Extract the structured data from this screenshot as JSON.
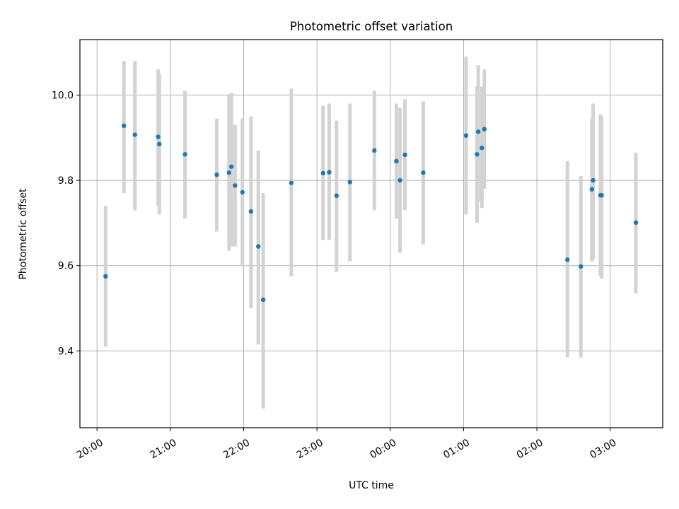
{
  "chart_data": {
    "type": "scatter",
    "title": "Photometric offset variation",
    "xlabel": "UTC time",
    "ylabel": "Photometric offset",
    "xlim": [
      "2000-01-01T19:46",
      "2000-01-02T03:43"
    ],
    "ylim": [
      9.22,
      10.13
    ],
    "xticks": [
      {
        "t": "2000-01-01T20:00",
        "label": "20:00"
      },
      {
        "t": "2000-01-01T21:00",
        "label": "21:00"
      },
      {
        "t": "2000-01-01T22:00",
        "label": "22:00"
      },
      {
        "t": "2000-01-01T23:00",
        "label": "23:00"
      },
      {
        "t": "2000-01-02T00:00",
        "label": "00:00"
      },
      {
        "t": "2000-01-02T01:00",
        "label": "01:00"
      },
      {
        "t": "2000-01-02T02:00",
        "label": "02:00"
      },
      {
        "t": "2000-01-02T03:00",
        "label": "03:00"
      }
    ],
    "yticks": [
      {
        "v": 9.4,
        "label": "9.4"
      },
      {
        "v": 9.6,
        "label": "9.6"
      },
      {
        "v": 9.8,
        "label": "9.8"
      },
      {
        "v": 10.0,
        "label": "10.0"
      }
    ],
    "grid": true,
    "point_color": "#1f77b4",
    "errorbar_color": "#d3d3d3",
    "points": [
      {
        "t": "2000-01-01T20:07",
        "y": 9.575,
        "lo": 9.41,
        "hi": 9.74
      },
      {
        "t": "2000-01-01T20:22",
        "y": 9.928,
        "lo": 9.77,
        "hi": 10.08
      },
      {
        "t": "2000-01-01T20:31",
        "y": 9.907,
        "lo": 9.73,
        "hi": 10.08
      },
      {
        "t": "2000-01-01T20:50",
        "y": 9.902,
        "lo": 9.74,
        "hi": 10.06
      },
      {
        "t": "2000-01-01T20:51",
        "y": 9.885,
        "lo": 9.72,
        "hi": 10.05
      },
      {
        "t": "2000-01-01T21:12",
        "y": 9.861,
        "lo": 9.71,
        "hi": 10.01
      },
      {
        "t": "2000-01-01T21:38",
        "y": 9.813,
        "lo": 9.68,
        "hi": 9.945
      },
      {
        "t": "2000-01-01T21:48",
        "y": 9.818,
        "lo": 9.635,
        "hi": 10.0
      },
      {
        "t": "2000-01-01T21:50",
        "y": 9.832,
        "lo": 9.645,
        "hi": 10.005
      },
      {
        "t": "2000-01-01T21:53",
        "y": 9.788,
        "lo": 9.645,
        "hi": 9.93
      },
      {
        "t": "2000-01-01T21:59",
        "y": 9.772,
        "lo": 9.6,
        "hi": 9.945
      },
      {
        "t": "2000-01-01T22:06",
        "y": 9.727,
        "lo": 9.5,
        "hi": 9.95
      },
      {
        "t": "2000-01-01T22:12",
        "y": 9.645,
        "lo": 9.415,
        "hi": 9.87
      },
      {
        "t": "2000-01-01T22:16",
        "y": 9.52,
        "lo": 9.265,
        "hi": 9.77
      },
      {
        "t": "2000-01-01T22:39",
        "y": 9.794,
        "lo": 9.575,
        "hi": 10.015
      },
      {
        "t": "2000-01-01T23:05",
        "y": 9.817,
        "lo": 9.66,
        "hi": 9.975
      },
      {
        "t": "2000-01-01T23:10",
        "y": 9.819,
        "lo": 9.66,
        "hi": 9.98
      },
      {
        "t": "2000-01-01T23:16",
        "y": 9.764,
        "lo": 9.585,
        "hi": 9.94
      },
      {
        "t": "2000-01-01T23:27",
        "y": 9.796,
        "lo": 9.61,
        "hi": 9.98
      },
      {
        "t": "2000-01-01T23:47",
        "y": 9.87,
        "lo": 9.73,
        "hi": 10.01
      },
      {
        "t": "2000-01-02T00:05",
        "y": 9.845,
        "lo": 9.71,
        "hi": 9.98
      },
      {
        "t": "2000-01-02T00:08",
        "y": 9.8,
        "lo": 9.63,
        "hi": 9.97
      },
      {
        "t": "2000-01-02T00:12",
        "y": 9.86,
        "lo": 9.73,
        "hi": 9.99
      },
      {
        "t": "2000-01-02T00:27",
        "y": 9.818,
        "lo": 9.65,
        "hi": 9.985
      },
      {
        "t": "2000-01-02T01:02",
        "y": 9.905,
        "lo": 9.72,
        "hi": 10.09
      },
      {
        "t": "2000-01-02T01:11",
        "y": 9.861,
        "lo": 9.7,
        "hi": 10.02
      },
      {
        "t": "2000-01-02T01:12",
        "y": 9.914,
        "lo": 9.75,
        "hi": 10.07
      },
      {
        "t": "2000-01-02T01:15",
        "y": 9.876,
        "lo": 9.735,
        "hi": 10.02
      },
      {
        "t": "2000-01-02T01:17",
        "y": 9.92,
        "lo": 9.78,
        "hi": 10.06
      },
      {
        "t": "2000-01-02T02:25",
        "y": 9.614,
        "lo": 9.385,
        "hi": 9.845
      },
      {
        "t": "2000-01-02T02:36",
        "y": 9.598,
        "lo": 9.385,
        "hi": 9.81
      },
      {
        "t": "2000-01-02T02:45",
        "y": 9.779,
        "lo": 9.61,
        "hi": 9.945
      },
      {
        "t": "2000-01-02T02:46",
        "y": 9.8,
        "lo": 9.615,
        "hi": 9.98
      },
      {
        "t": "2000-01-02T02:52",
        "y": 9.765,
        "lo": 9.575,
        "hi": 9.955
      },
      {
        "t": "2000-01-02T02:53",
        "y": 9.765,
        "lo": 9.57,
        "hi": 9.95
      },
      {
        "t": "2000-01-02T03:21",
        "y": 9.701,
        "lo": 9.535,
        "hi": 9.865
      }
    ]
  }
}
